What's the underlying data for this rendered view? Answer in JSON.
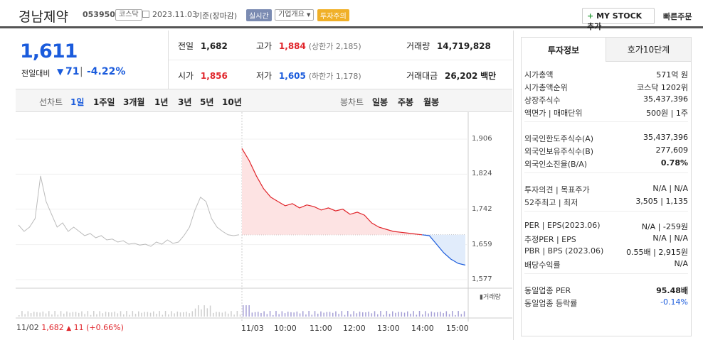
{
  "header": {
    "company": "경남제약",
    "code": "053950",
    "market_badge": "코스닥",
    "date": "2023.11.03",
    "date_suffix": "기준(장마감)",
    "realtime_badge": "실시간",
    "overview_label": "기업개요",
    "caution_badge": "투자주의",
    "mystock_label": "MY STOCK 추가",
    "quick_order_label": "빠른주문"
  },
  "quote": {
    "price": "1,611",
    "change_label": "전일대비",
    "change": "71",
    "change_pct": "-4.22%",
    "prev_label": "전일",
    "prev": "1,682",
    "high_label": "고가",
    "high": "1,884",
    "upper_limit": "(상한가 2,185)",
    "volume_label": "거래량",
    "volume": "14,719,828",
    "open_label": "시가",
    "open": "1,856",
    "low_label": "저가",
    "low": "1,605",
    "lower_limit": "(하한가 1,178)",
    "amount_label": "거래대금",
    "amount": "26,202",
    "amount_unit": "백만"
  },
  "periods": {
    "line_label": "선차트",
    "items": [
      "1일",
      "1주일",
      "3개월",
      "1년",
      "3년",
      "5년",
      "10년"
    ],
    "candle_label": "봉차트",
    "candle_items": [
      "일봉",
      "주봉",
      "월봉"
    ]
  },
  "chart_data": {
    "type": "line",
    "y_ticks": [
      "1,906",
      "1,824",
      "1,742",
      "1,659",
      "1,577"
    ],
    "ylim": [
      1577,
      1906
    ],
    "x_ticks": [
      "11/03",
      "10:00",
      "11:00",
      "12:00",
      "13:00",
      "14:00",
      "15:00"
    ],
    "prev_close": 1682,
    "volume_label": "거래량",
    "prev_day_summary": {
      "date": "11/02",
      "close": "1,682",
      "change": "11",
      "pct": "(+0.66%)"
    },
    "series": [
      {
        "values_today": [
          1884,
          1856,
          1820,
          1790,
          1770,
          1760,
          1750,
          1755,
          1745,
          1752,
          1748,
          1740,
          1745,
          1738,
          1742,
          1730,
          1735,
          1728,
          1710,
          1700,
          1695,
          1690,
          1688,
          1686,
          1684,
          1682,
          1680,
          1660,
          1640,
          1625,
          1615,
          1611
        ]
      }
    ],
    "colors": {
      "up": "#e0252b",
      "down": "#1a5bdc",
      "prev": "#bbbbbb"
    }
  },
  "tabs": {
    "info": "투자정보",
    "orderbook": "호가10단계"
  },
  "info": {
    "rows1": [
      {
        "k": "시가총액",
        "v": "571억 원"
      },
      {
        "k": "시가총액순위",
        "v": "코스닥 1202위"
      },
      {
        "k": "상장주식수",
        "v": "35,437,396"
      },
      {
        "k": "액면가 | 매매단위",
        "v": "500원 | 1주"
      }
    ],
    "rows2": [
      {
        "k": "외국인한도주식수(A)",
        "v": "35,437,396"
      },
      {
        "k": "외국인보유주식수(B)",
        "v": "277,609"
      },
      {
        "k": "외국인소진율(B/A)",
        "v": "0.78%"
      }
    ],
    "rows3": [
      {
        "k": "투자의견 | 목표주가",
        "v": "N/A | N/A"
      },
      {
        "k": "52주최고 | 최저",
        "v": "3,505 | 1,135"
      }
    ],
    "rows4": [
      {
        "k": "PER | EPS(2023.06)",
        "v": "N/A | -259원"
      },
      {
        "k": "추정PER | EPS",
        "v": "N/A | N/A"
      },
      {
        "k": "PBR | BPS (2023.06)",
        "v": "0.55배 | 2,915원"
      },
      {
        "k": "배당수익률",
        "v": "N/A"
      }
    ],
    "rows5": [
      {
        "k": "동일업종 PER",
        "v": "95.48배"
      },
      {
        "k": "동일업종 등락률",
        "v": "-0.14%"
      }
    ]
  }
}
